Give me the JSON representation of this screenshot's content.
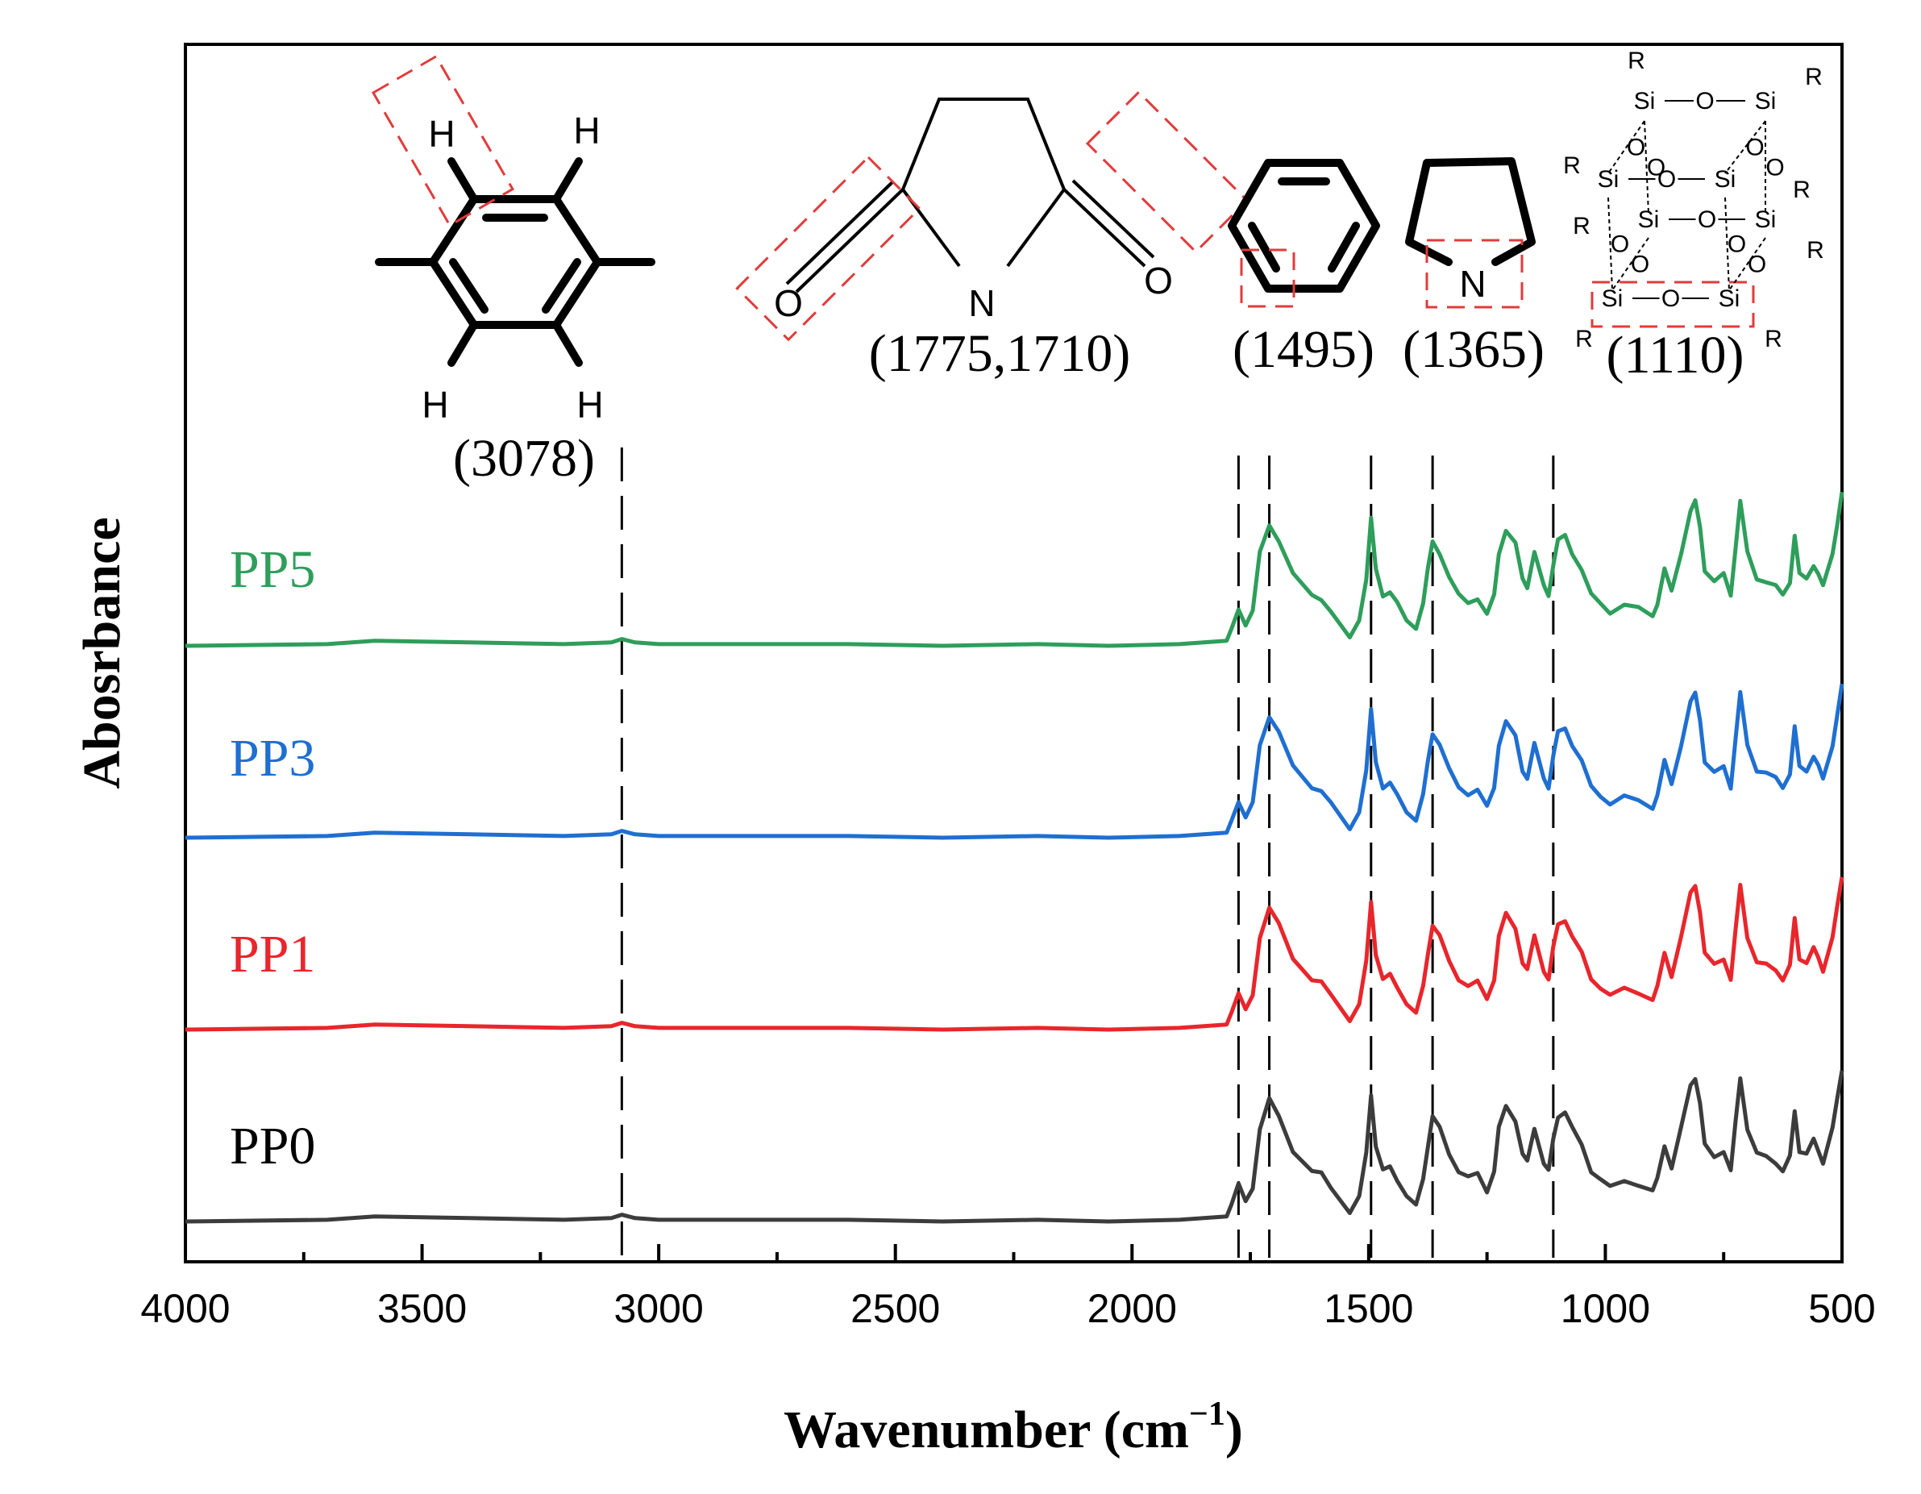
{
  "chart_data": {
    "type": "line",
    "xlabel": "Wavenumber (cm",
    "xlabel_sup": "−1",
    "xlabel_close": ")",
    "ylabel": "Abosrbance",
    "xlim": [
      4000,
      500
    ],
    "x_reversed": true,
    "y_ticks_shown": false,
    "x_ticks": [
      4000,
      3500,
      3000,
      2500,
      2000,
      1500,
      1000,
      500
    ],
    "x_tick_labels": [
      "4000",
      "3500",
      "3000",
      "2500",
      "2000",
      "1500",
      "1000",
      "500"
    ],
    "vertical_reference_lines": [
      3078,
      1775,
      1710,
      1495,
      1365,
      1110
    ],
    "series": [
      {
        "name": "PP5",
        "color": "#2e9e5b",
        "offset": 3
      },
      {
        "name": "PP3",
        "color": "#1f6fd1",
        "offset": 2
      },
      {
        "name": "PP1",
        "color": "#e8262c",
        "offset": 1
      },
      {
        "name": "PP0",
        "color": "#3c3c3c",
        "offset": 0
      }
    ],
    "spectrum_profile": {
      "x": [
        4000,
        3700,
        3600,
        3400,
        3200,
        3100,
        3078,
        3050,
        3000,
        2800,
        2600,
        2400,
        2200,
        2050,
        1900,
        1800,
        1790,
        1775,
        1760,
        1745,
        1730,
        1710,
        1690,
        1660,
        1620,
        1600,
        1580,
        1540,
        1520,
        1505,
        1495,
        1485,
        1470,
        1455,
        1440,
        1420,
        1400,
        1385,
        1375,
        1365,
        1350,
        1330,
        1310,
        1290,
        1270,
        1250,
        1235,
        1225,
        1210,
        1190,
        1175,
        1165,
        1150,
        1130,
        1120,
        1110,
        1100,
        1085,
        1070,
        1050,
        1030,
        1010,
        990,
        960,
        930,
        900,
        890,
        875,
        860,
        840,
        820,
        810,
        800,
        790,
        770,
        750,
        735,
        725,
        715,
        700,
        680,
        660,
        640,
        625,
        610,
        600,
        590,
        575,
        560,
        550,
        540,
        520,
        510,
        500
      ],
      "y": [
        0.0,
        0.01,
        0.03,
        0.02,
        0.01,
        0.02,
        0.04,
        0.02,
        0.01,
        0.01,
        0.01,
        0.0,
        0.01,
        0.0,
        0.01,
        0.03,
        0.1,
        0.22,
        0.12,
        0.2,
        0.55,
        0.72,
        0.62,
        0.42,
        0.3,
        0.28,
        0.2,
        0.05,
        0.15,
        0.4,
        0.75,
        0.45,
        0.3,
        0.32,
        0.25,
        0.15,
        0.1,
        0.25,
        0.45,
        0.62,
        0.55,
        0.4,
        0.3,
        0.26,
        0.28,
        0.18,
        0.3,
        0.55,
        0.68,
        0.6,
        0.4,
        0.35,
        0.55,
        0.35,
        0.3,
        0.48,
        0.62,
        0.65,
        0.55,
        0.45,
        0.3,
        0.25,
        0.2,
        0.24,
        0.22,
        0.18,
        0.25,
        0.45,
        0.32,
        0.55,
        0.8,
        0.85,
        0.7,
        0.45,
        0.38,
        0.42,
        0.3,
        0.58,
        0.85,
        0.55,
        0.4,
        0.38,
        0.35,
        0.3,
        0.38,
        0.65,
        0.42,
        0.4,
        0.48,
        0.42,
        0.35,
        0.55,
        0.72,
        0.9
      ]
    },
    "peak_annotations": [
      {
        "label": "(3078)",
        "x": 3078,
        "group": "benzene-CH"
      },
      {
        "label": "(1775,1710)",
        "x": 1742,
        "group": "imide-C=O"
      },
      {
        "label": "(1495)",
        "x": 1495,
        "group": "benzene-ring"
      },
      {
        "label": "(1365)",
        "x": 1365,
        "group": "C-N"
      },
      {
        "label": "(1110)",
        "x": 1110,
        "group": "Si-O-Si"
      }
    ]
  },
  "structures": {
    "benzene_ch": {
      "h_top_left": "H",
      "h_top_right": "H",
      "h_bottom_left": "H",
      "h_bottom_right": "H"
    },
    "succinimide": {
      "o_left": "O",
      "o_right": "O",
      "n": "N"
    },
    "pyrrolidine": {
      "n": "N"
    },
    "poss": {
      "si": "Si",
      "o": "O",
      "r": "R"
    }
  }
}
